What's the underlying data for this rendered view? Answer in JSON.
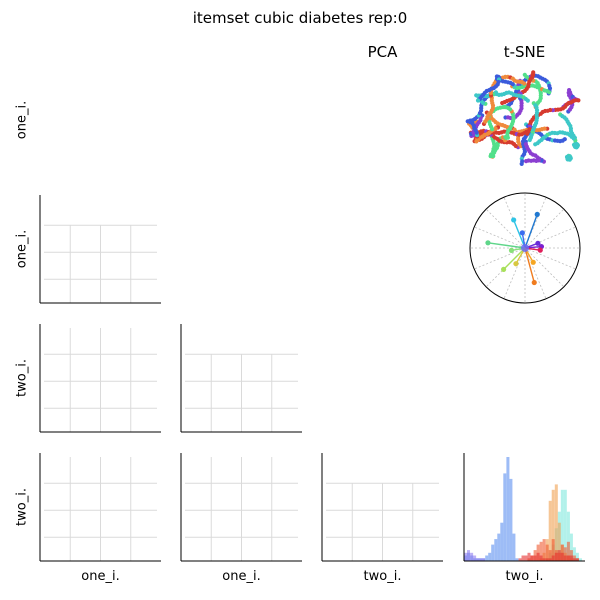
{
  "figure": {
    "title": "itemset cubic diabetes rep:0",
    "column_headers": {
      "pca": "PCA",
      "tsne": "t-SNE"
    },
    "row_labels": [
      "one_i.",
      "one_i.",
      "two_i.",
      "two_i."
    ],
    "col_labels": [
      "one_i.",
      "one_i.",
      "two_i.",
      "two_i."
    ]
  },
  "chart_data": [
    {
      "type": "scatter",
      "panel": "tsne-embedding",
      "title": "t-SNE",
      "description_visible": "coloured point-trails forming tangled loops",
      "colors": [
        "#3b5bdb",
        "#3ec8c8",
        "#52e08a",
        "#f08a3c",
        "#d63b2f",
        "#8b3fd1"
      ],
      "grid": false,
      "axes": false
    },
    {
      "type": "scatter",
      "panel": "polar-pca-loadings",
      "projection": "polar",
      "spokes": [
        {
          "angle_deg": 70,
          "radius": 0.65,
          "color": "#1f78d1"
        },
        {
          "angle_deg": 112,
          "radius": 0.55,
          "color": "#2ec4e6"
        },
        {
          "angle_deg": 100,
          "radius": 0.28,
          "color": "#3a6df0"
        },
        {
          "angle_deg": 20,
          "radius": 0.25,
          "color": "#6a2bd8"
        },
        {
          "angle_deg": 5,
          "radius": 0.3,
          "color": "#7c1fd0"
        },
        {
          "angle_deg": -8,
          "radius": 0.28,
          "color": "#e01f5a"
        },
        {
          "angle_deg": 172,
          "radius": 0.68,
          "color": "#5fd68a"
        },
        {
          "angle_deg": 190,
          "radius": 0.25,
          "color": "#88e07a"
        },
        {
          "angle_deg": 225,
          "radius": 0.55,
          "color": "#a8e05a"
        },
        {
          "angle_deg": 240,
          "radius": 0.33,
          "color": "#d8c840"
        },
        {
          "angle_deg": 285,
          "radius": 0.65,
          "color": "#f07c1f"
        },
        {
          "angle_deg": 300,
          "radius": 0.3,
          "color": "#f5a623"
        }
      ],
      "grid": true
    },
    {
      "type": "histogram",
      "panel": "distribution",
      "xlabel": "two_i.",
      "series": [
        {
          "color": "#5b8ff0",
          "values": [
            2,
            3,
            2,
            1,
            1,
            1,
            1,
            2,
            3,
            6,
            8,
            10,
            14,
            32,
            38,
            30,
            10,
            1,
            0,
            0,
            0,
            0,
            0,
            0,
            0,
            0,
            0,
            0,
            0,
            0,
            0,
            0,
            0,
            0,
            0,
            0,
            0,
            0,
            0,
            0
          ]
        },
        {
          "color": "#8f7cf0",
          "values": [
            3,
            4,
            3,
            2,
            1,
            1,
            1,
            0,
            0,
            0,
            0,
            0,
            0,
            0,
            0,
            0,
            0,
            0,
            0,
            0,
            0,
            0,
            0,
            0,
            0,
            0,
            0,
            0,
            0,
            0,
            0,
            0,
            0,
            0,
            0,
            0,
            0,
            0,
            0,
            0
          ]
        },
        {
          "color": "#7fe8dc",
          "values": [
            0,
            0,
            0,
            0,
            0,
            0,
            0,
            0,
            0,
            0,
            0,
            0,
            0,
            0,
            0,
            0,
            0,
            0,
            0,
            0,
            0,
            0,
            0,
            0,
            0,
            0,
            0,
            1,
            3,
            6,
            12,
            18,
            26,
            26,
            18,
            10,
            5,
            3,
            1,
            0
          ]
        },
        {
          "color": "#f0a050",
          "values": [
            0,
            0,
            0,
            0,
            0,
            0,
            0,
            0,
            0,
            0,
            0,
            0,
            0,
            0,
            0,
            0,
            0,
            0,
            0,
            0,
            0,
            0,
            0,
            0,
            0,
            1,
            3,
            8,
            22,
            26,
            28,
            14,
            6,
            3,
            2,
            1,
            0,
            0,
            0,
            0
          ]
        },
        {
          "color": "#f05a30",
          "values": [
            0,
            0,
            0,
            0,
            0,
            0,
            0,
            0,
            0,
            0,
            0,
            0,
            0,
            0,
            0,
            0,
            0,
            0,
            0,
            0,
            0,
            1,
            2,
            4,
            6,
            7,
            8,
            6,
            4,
            8,
            4,
            3,
            6,
            5,
            7,
            4,
            2,
            1,
            0,
            0
          ]
        },
        {
          "color": "#e6302e",
          "values": [
            0,
            0,
            0,
            0,
            0,
            0,
            0,
            0,
            0,
            0,
            0,
            0,
            0,
            0,
            0,
            0,
            0,
            0,
            1,
            2,
            2,
            3,
            2,
            2,
            3,
            2,
            1,
            1,
            1,
            2,
            3,
            4,
            3,
            2,
            2,
            2,
            1,
            1,
            0,
            0
          ]
        }
      ]
    }
  ]
}
